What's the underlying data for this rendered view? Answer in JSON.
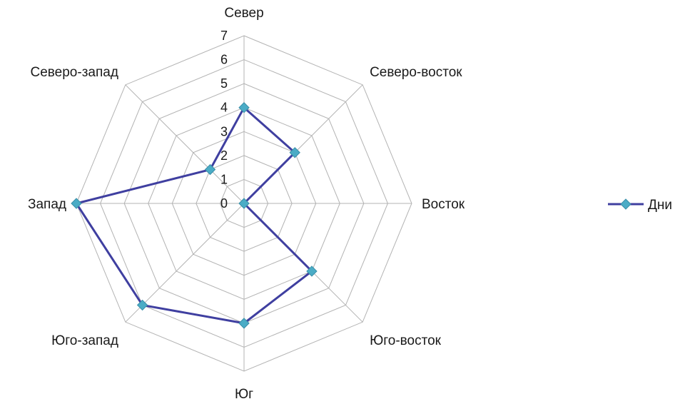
{
  "chart_data": {
    "type": "radar",
    "categories": [
      "Север",
      "Северо-восток",
      "Восток",
      "Юго-восток",
      "Юг",
      "Юго-запад",
      "Запад",
      "Северо-запад"
    ],
    "ticks": [
      "0",
      "1",
      "2",
      "3",
      "4",
      "5",
      "6",
      "7"
    ],
    "rlim": [
      0,
      7
    ],
    "grid": true,
    "legend_position": "right",
    "series": [
      {
        "name": "Дни",
        "values": [
          4,
          3,
          0,
          4,
          5,
          6,
          7,
          2
        ],
        "line_color": "#3f3fa0",
        "marker_color": "#4bacc6"
      }
    ]
  }
}
